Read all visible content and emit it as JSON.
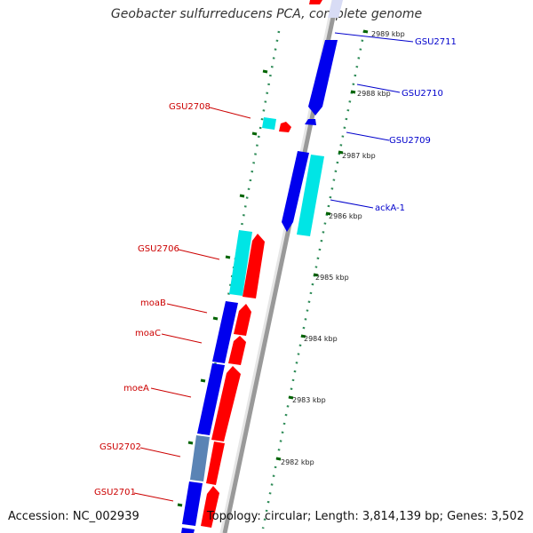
{
  "title": "Geobacter sulfurreducens PCA, complete genome",
  "footer": {
    "accession": "Accession: NC_002939",
    "stats": "Topology: circular; Length: 3,814,139 bp; Genes: 3,502"
  },
  "colors": {
    "forward": "#ff0000",
    "reverse": "#0000ee",
    "rna_forward": "#00e5e5",
    "highlight": "#5a84b5",
    "label_forward": "#cc0000",
    "label_reverse": "#0000cc",
    "tick": "#2e8b57"
  },
  "scale": {
    "unit": "kbp",
    "ticks": [
      "2982 kbp",
      "2983 kbp",
      "2984 kbp",
      "2985 kbp",
      "2986 kbp",
      "2987 kbp",
      "2988 kbp",
      "2989 kbp"
    ]
  },
  "genes": [
    {
      "name": "GSU2711",
      "strand": "reverse"
    },
    {
      "name": "GSU2710",
      "strand": "reverse"
    },
    {
      "name": "GSU2709",
      "strand": "reverse"
    },
    {
      "name": "ackA-1",
      "strand": "reverse"
    },
    {
      "name": "GSU2708",
      "strand": "forward"
    },
    {
      "name": "GSU2706",
      "strand": "forward"
    },
    {
      "name": "moaB",
      "strand": "forward"
    },
    {
      "name": "moaC",
      "strand": "forward"
    },
    {
      "name": "moeA",
      "strand": "forward"
    },
    {
      "name": "GSU2702",
      "strand": "forward"
    },
    {
      "name": "GSU2701",
      "strand": "forward"
    }
  ]
}
